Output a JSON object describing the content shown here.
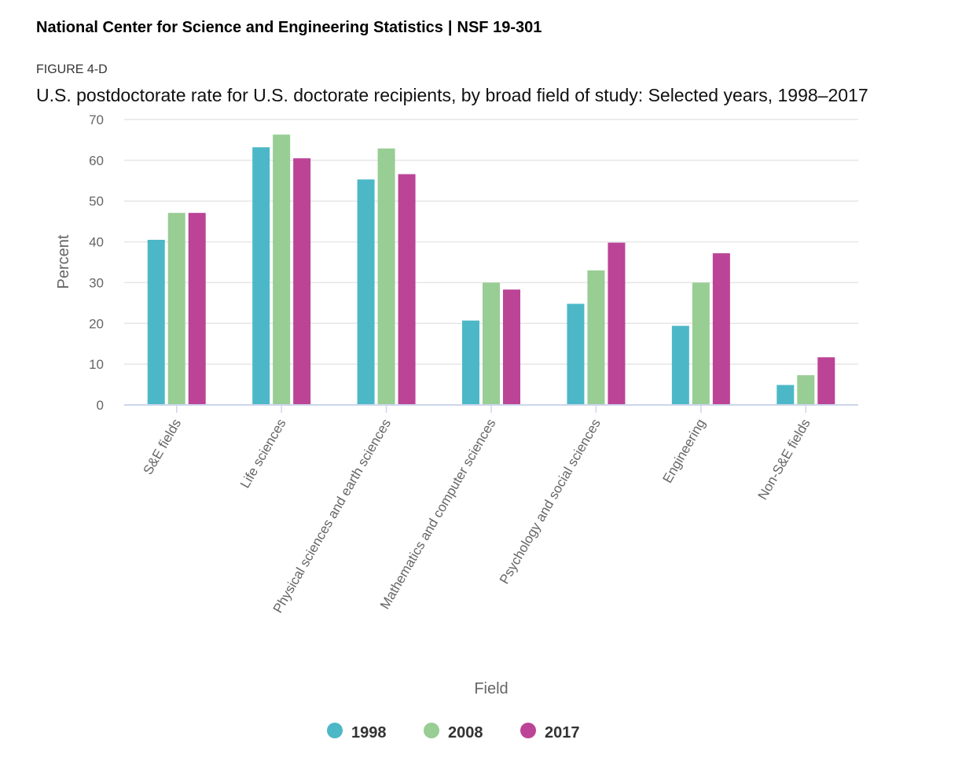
{
  "header": {
    "org": "National Center for Science and Engineering Statistics",
    "separator": "|",
    "report": "NSF 19-301"
  },
  "figure": {
    "label": "FIGURE 4-D",
    "title": "U.S. postdoctorate rate for U.S. doctorate recipients, by broad field of study: Selected years, 1998–2017"
  },
  "chart_data": {
    "type": "bar",
    "title": "U.S. postdoctorate rate for U.S. doctorate recipients, by broad field of study: Selected years, 1998–2017",
    "xlabel": "Field",
    "ylabel": "Percent",
    "ylim": [
      0,
      70
    ],
    "yticks": [
      0,
      10,
      20,
      30,
      40,
      50,
      60,
      70
    ],
    "grid": true,
    "legend_position": "bottom",
    "categories": [
      "S&E fields",
      "Life sciences",
      "Physical sciences and earth sciences",
      "Mathematics and computer sciences",
      "Psychology and social sciences",
      "Engineering",
      "Non-S&E fields"
    ],
    "series": [
      {
        "name": "1998",
        "color": "#4cb8c7",
        "values": [
          40.5,
          63.2,
          55.3,
          20.7,
          24.8,
          19.4,
          4.9
        ]
      },
      {
        "name": "2008",
        "color": "#98cd94",
        "values": [
          47.1,
          66.3,
          62.9,
          30.0,
          33.0,
          30.0,
          7.3
        ]
      },
      {
        "name": "2017",
        "color": "#bb4496",
        "values": [
          47.1,
          60.5,
          56.6,
          28.3,
          39.8,
          37.2,
          11.7
        ]
      }
    ]
  }
}
